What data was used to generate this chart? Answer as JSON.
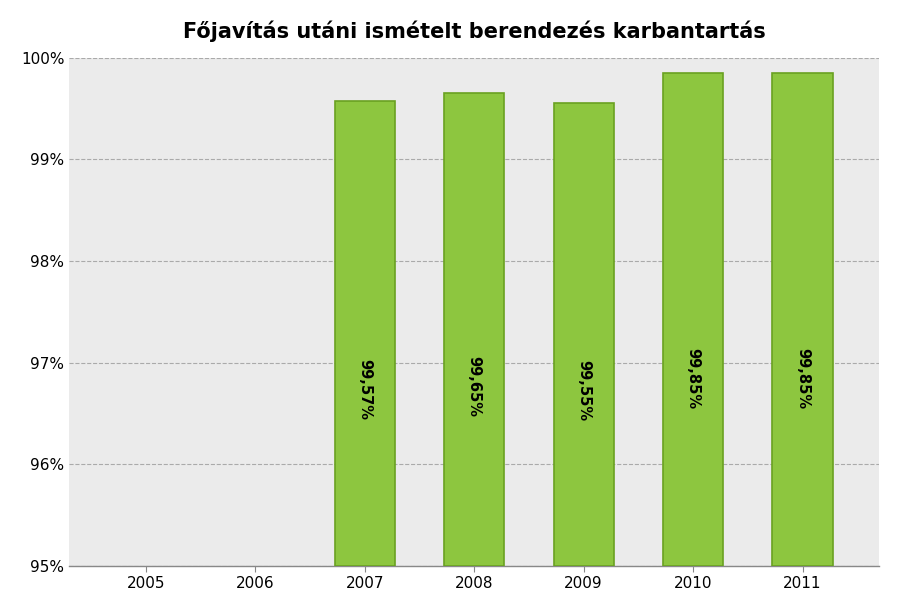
{
  "title": "Főjavítás utáni ismételt berendezés karbantartás",
  "categories": [
    2005,
    2006,
    2007,
    2008,
    2009,
    2010,
    2011
  ],
  "values": [
    null,
    null,
    99.57,
    99.65,
    99.55,
    99.85,
    99.85
  ],
  "labels": [
    "",
    "",
    "99,57%",
    "99,65%",
    "99,55%",
    "99,85%",
    "99,85%"
  ],
  "bar_color": "#8DC63F",
  "bar_edge_color": "#6AA121",
  "ylim_min": 95.0,
  "ylim_max": 100.0,
  "yticks": [
    95,
    96,
    97,
    98,
    99,
    100
  ],
  "ytick_labels": [
    "95%",
    "96%",
    "97%",
    "98%",
    "99%",
    "100%"
  ],
  "fig_bg_color": "#FFFFFF",
  "plot_bg_color": "#EBEBEB",
  "grid_color": "#AAAAAA",
  "title_fontsize": 15,
  "tick_fontsize": 11,
  "label_fontsize": 10.5,
  "bar_width": 0.55
}
